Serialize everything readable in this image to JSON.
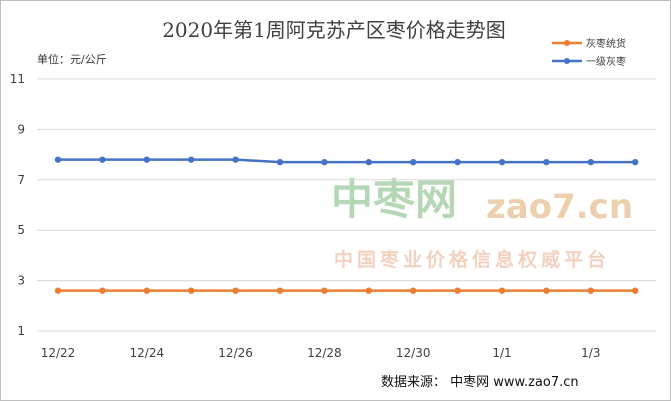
{
  "chart_data": {
    "type": "line",
    "title": "2020年第1周阿克苏产区枣价格走势图",
    "unit_label": "单位：元/公斤",
    "ylim": [
      1,
      11
    ],
    "yticks": [
      "1",
      "3",
      "5",
      "7",
      "9",
      "11"
    ],
    "categories": [
      "12/22",
      "12/23",
      "12/24",
      "12/25",
      "12/26",
      "12/27",
      "12/28",
      "12/29",
      "12/30",
      "12/31",
      "1/1",
      "1/2",
      "1/3",
      "1/4"
    ],
    "xtick_labels": [
      "12/22",
      "12/24",
      "12/26",
      "12/28",
      "12/30",
      "1/1",
      "1/3"
    ],
    "series": [
      {
        "name": "灰枣统货",
        "color": "#ed7d31",
        "values": [
          2.6,
          2.6,
          2.6,
          2.6,
          2.6,
          2.6,
          2.6,
          2.6,
          2.6,
          2.6,
          2.6,
          2.6,
          2.6,
          2.6
        ]
      },
      {
        "name": "一级灰枣",
        "color": "#4472c4",
        "values": [
          7.8,
          7.8,
          7.8,
          7.8,
          7.8,
          7.7,
          7.7,
          7.7,
          7.7,
          7.7,
          7.7,
          7.7,
          7.7,
          7.7
        ]
      }
    ],
    "grid": true,
    "legend_position": "top-right"
  },
  "watermark": {
    "brand": "中枣网",
    "url": "zao7.cn",
    "slogan": "中国枣业价格信息权威平台"
  },
  "source_note": "数据来源：  中枣网 www.zao7.cn"
}
